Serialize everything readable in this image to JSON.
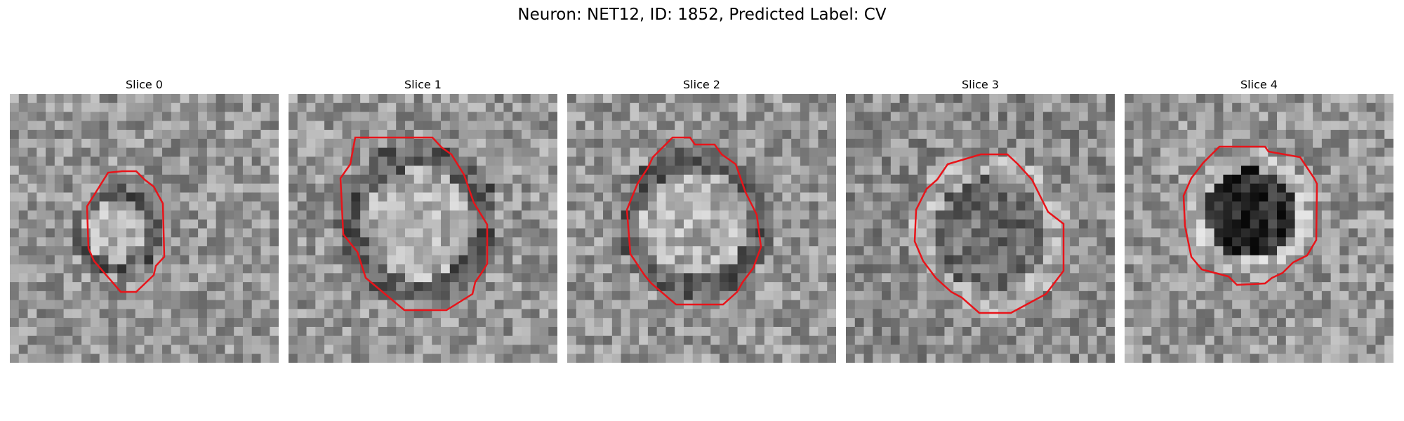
{
  "title": "Neuron: NET12, ID: 1852, Predicted Label: CV",
  "overlay_color": "#e8141a",
  "slices": [
    {
      "label": "Slice 0",
      "center_brightness": "bright",
      "ring": "dark"
    },
    {
      "label": "Slice 1",
      "center_brightness": "bright",
      "ring": "dark"
    },
    {
      "label": "Slice 2",
      "center_brightness": "bright",
      "ring": "dark"
    },
    {
      "label": "Slice 3",
      "center_brightness": "medium-dark",
      "ring": "light"
    },
    {
      "label": "Slice 4",
      "center_brightness": "dark",
      "ring": "light"
    }
  ]
}
